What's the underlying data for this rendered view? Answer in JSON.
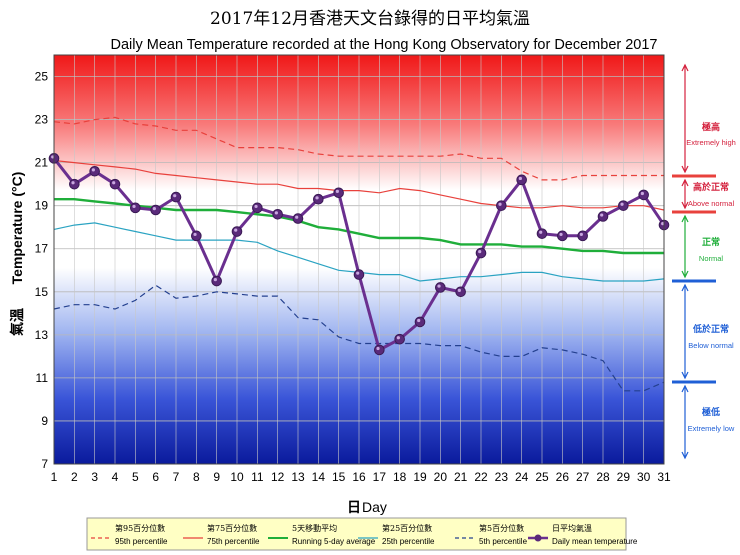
{
  "title_zh": "2017年12月香港天文台錄得的日平均氣溫",
  "title_en": "Daily Mean Temperature recorded at the Hong Kong Observatory for December 2017",
  "chart_data": {
    "type": "line",
    "x": [
      1,
      2,
      3,
      4,
      5,
      6,
      7,
      8,
      9,
      10,
      11,
      12,
      13,
      14,
      15,
      16,
      17,
      18,
      19,
      20,
      21,
      22,
      23,
      24,
      25,
      26,
      27,
      28,
      29,
      30,
      31
    ],
    "xlabel_zh": "日",
    "xlabel_en": "Day",
    "ylabel_zh": "氣溫",
    "ylabel_en": "Temperature (°C)",
    "ylim": [
      7,
      26
    ],
    "yticks": [
      7,
      9,
      11,
      13,
      15,
      17,
      19,
      21,
      23,
      25
    ],
    "grid": true,
    "series": [
      {
        "key": "p95",
        "name_zh": "第95百分位數",
        "name_en": "95th percentile",
        "color": "#e8413c",
        "dash": "6,4",
        "values": [
          22.9,
          22.8,
          23.0,
          23.1,
          22.8,
          22.7,
          22.5,
          22.5,
          22.1,
          21.7,
          21.7,
          21.7,
          21.6,
          21.4,
          21.3,
          21.3,
          21.3,
          21.3,
          21.3,
          21.3,
          21.4,
          21.2,
          21.2,
          20.6,
          20.2,
          20.2,
          20.4,
          20.4,
          20.4,
          20.4,
          20.4
        ]
      },
      {
        "key": "p75",
        "name_zh": "第75百分位數",
        "name_en": "75th percentile",
        "color": "#e8413c",
        "dash": "",
        "values": [
          21.1,
          21.0,
          20.9,
          20.8,
          20.7,
          20.5,
          20.4,
          20.3,
          20.2,
          20.1,
          20.0,
          20.0,
          19.8,
          19.8,
          19.7,
          19.7,
          19.6,
          19.8,
          19.7,
          19.5,
          19.3,
          19.1,
          19.0,
          18.9,
          18.9,
          19.0,
          18.9,
          18.9,
          19.0,
          19.0,
          18.8
        ]
      },
      {
        "key": "avg5",
        "name_zh": "5天移動平均",
        "name_en": "Running 5-day average",
        "color": "#1fae3a",
        "dash": "",
        "values": [
          19.3,
          19.3,
          19.2,
          19.1,
          19.0,
          18.9,
          18.8,
          18.8,
          18.8,
          18.7,
          18.6,
          18.5,
          18.3,
          18.0,
          17.9,
          17.7,
          17.5,
          17.5,
          17.5,
          17.4,
          17.2,
          17.2,
          17.2,
          17.1,
          17.1,
          17.0,
          16.9,
          16.9,
          16.8,
          16.8,
          16.8
        ]
      },
      {
        "key": "p25",
        "name_zh": "第25百分位數",
        "name_en": "25th percentile",
        "color": "#2aa3c2",
        "dash": "",
        "values": [
          17.9,
          18.1,
          18.2,
          18.0,
          17.8,
          17.6,
          17.4,
          17.4,
          17.4,
          17.4,
          17.3,
          16.9,
          16.6,
          16.3,
          16.0,
          15.9,
          15.8,
          15.8,
          15.5,
          15.6,
          15.7,
          15.7,
          15.8,
          15.9,
          15.9,
          15.7,
          15.6,
          15.5,
          15.5,
          15.5,
          15.6
        ]
      },
      {
        "key": "p5",
        "name_zh": "第5百分位數",
        "name_en": "5th percentile",
        "color": "#24408f",
        "dash": "6,4",
        "values": [
          14.2,
          14.4,
          14.4,
          14.2,
          14.6,
          15.3,
          14.7,
          14.8,
          15.0,
          14.9,
          14.8,
          14.8,
          13.8,
          13.7,
          12.9,
          12.6,
          12.6,
          12.6,
          12.6,
          12.5,
          12.5,
          12.2,
          12.0,
          12.0,
          12.4,
          12.3,
          12.1,
          11.8,
          10.4,
          10.4,
          10.8
        ]
      },
      {
        "key": "daily",
        "name_zh": "日平均氣溫",
        "name_en": "Daily mean temperature",
        "color": "#6a2f8f",
        "dash": "",
        "values": [
          21.2,
          20.0,
          20.6,
          20.0,
          18.9,
          18.8,
          19.4,
          17.6,
          15.5,
          17.8,
          18.9,
          18.6,
          18.4,
          19.3,
          19.6,
          15.8,
          12.3,
          12.8,
          13.6,
          15.2,
          15.0,
          16.8,
          19.0,
          20.2,
          17.7,
          17.6,
          17.6,
          18.5,
          19.0,
          19.5,
          18.1
        ]
      }
    ]
  },
  "categories": [
    {
      "zh": "極高",
      "en": "Extremely high",
      "color": "#d4213d"
    },
    {
      "zh": "高於正常",
      "en": "Above normal",
      "color": "#d4213d"
    },
    {
      "zh": "正常",
      "en": "Normal",
      "color": "#1fae3a"
    },
    {
      "zh": "低於正常",
      "en": "Below normal",
      "color": "#1f5fd6"
    },
    {
      "zh": "極低",
      "en": "Extremely low",
      "color": "#1f5fd6"
    }
  ]
}
